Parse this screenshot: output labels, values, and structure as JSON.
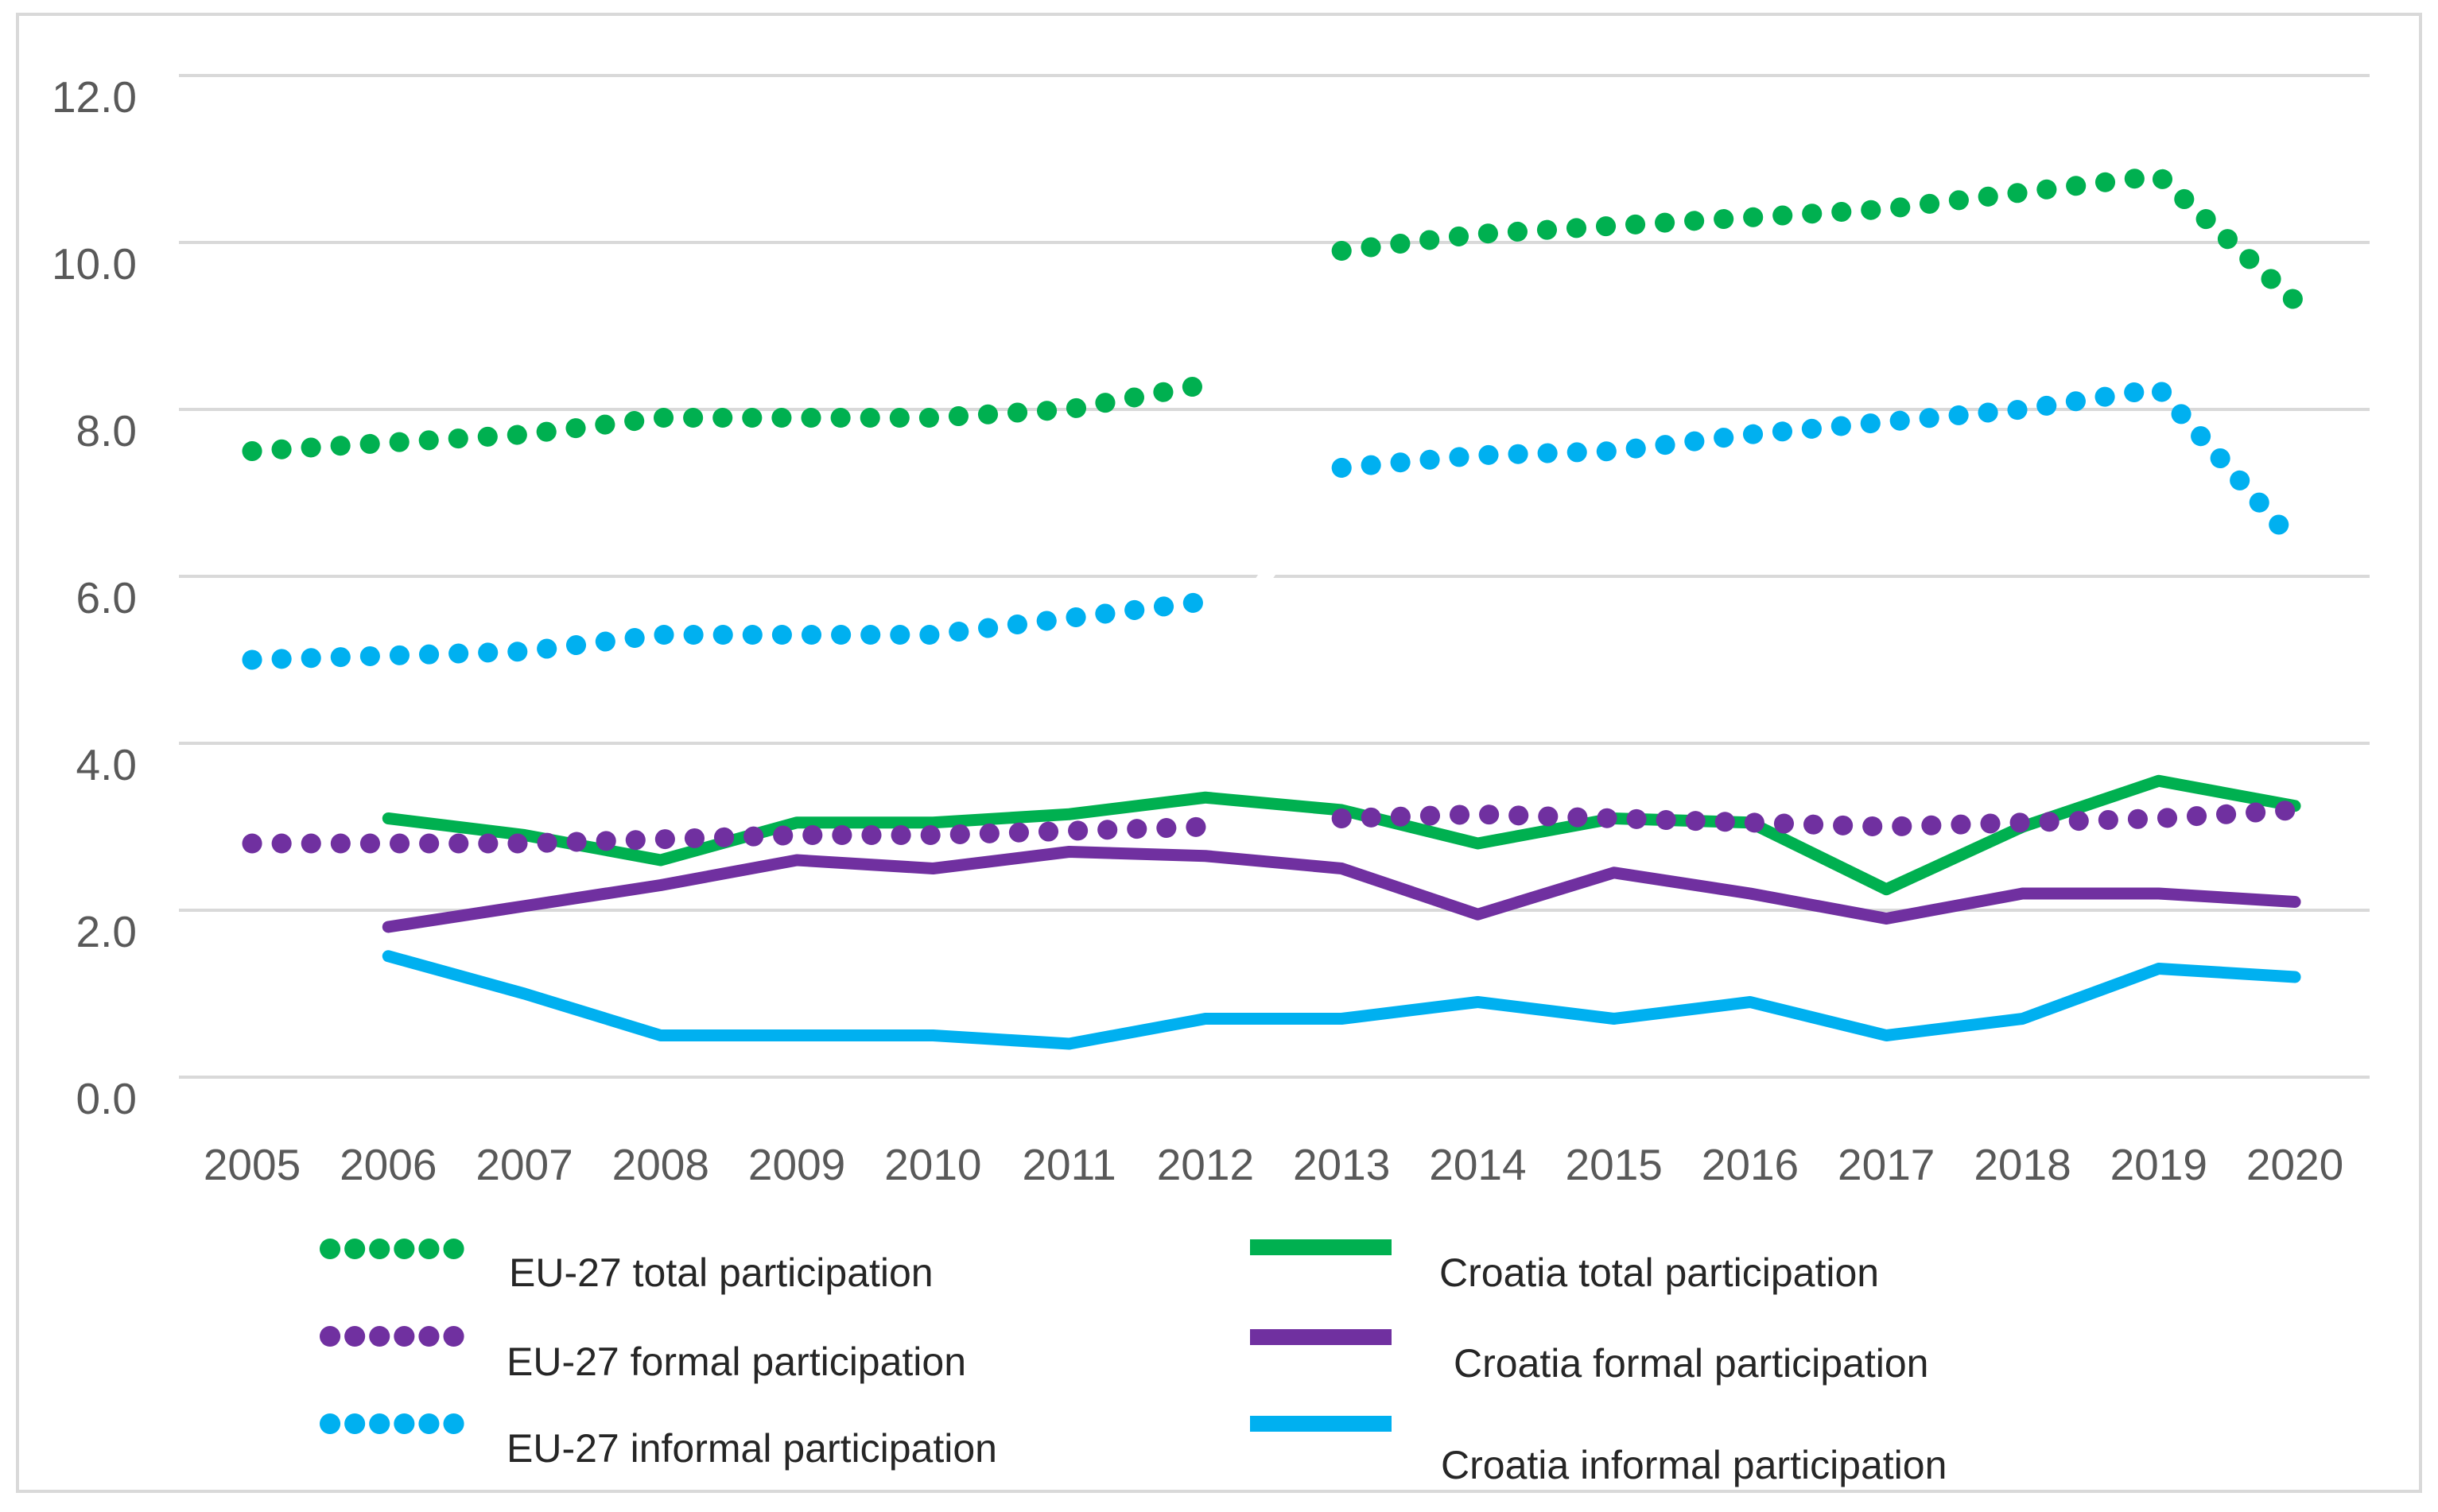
{
  "chart_data": {
    "type": "line",
    "title": "",
    "xlabel": "",
    "ylabel": "",
    "x": [
      2005,
      2006,
      2007,
      2008,
      2009,
      2010,
      2011,
      2012,
      2013,
      2014,
      2015,
      2016,
      2017,
      2018,
      2019,
      2020
    ],
    "xtick_labels": [
      "2005",
      "2006",
      "2007",
      "2008",
      "2009",
      "2010",
      "2011",
      "2012",
      "2013",
      "2014",
      "2015",
      "2016",
      "2017",
      "2018",
      "2019",
      "2020"
    ],
    "ylim": [
      0,
      12
    ],
    "yticks": [
      12,
      10,
      8,
      6,
      4,
      2,
      0
    ],
    "ytick_labels": [
      "12.0",
      "10.0",
      "8.0",
      "6.0",
      "4.0",
      "2.0",
      "0.0"
    ],
    "grid": true,
    "gridline_color": "#D9D9D9",
    "axis_text_color": "#595959",
    "legend_position": "bottom",
    "series_break_between_years": [
      2012,
      2013
    ],
    "series": [
      {
        "name": "EU-27 total participation",
        "style": "dotted",
        "color": "#00B050",
        "break_after_index": 7,
        "values": [
          7.5,
          7.6,
          7.7,
          7.9,
          7.9,
          7.9,
          8.0,
          8.3,
          9.9,
          10.1,
          10.2,
          10.3,
          10.4,
          10.6,
          10.8,
          9.3
        ]
      },
      {
        "name": "EU-27 formal participation",
        "style": "dotted",
        "color": "#7030A0",
        "break_after_index": 7,
        "values": [
          2.8,
          2.8,
          2.8,
          2.85,
          2.9,
          2.9,
          2.95,
          3.0,
          3.1,
          3.15,
          3.1,
          3.05,
          3.0,
          3.05,
          3.1,
          3.2
        ]
      },
      {
        "name": "EU-27 informal participation",
        "style": "dotted",
        "color": "#00B0F0",
        "break_after_index": 7,
        "values": [
          5.0,
          5.05,
          5.1,
          5.3,
          5.3,
          5.3,
          5.5,
          5.7,
          7.3,
          7.45,
          7.5,
          7.7,
          7.85,
          8.0,
          8.25,
          6.4
        ]
      },
      {
        "name": "Croatia total participation",
        "style": "solid",
        "color": "#00B050",
        "break_after_index": null,
        "values": [
          null,
          3.1,
          2.9,
          2.6,
          3.05,
          3.05,
          3.15,
          3.35,
          3.2,
          2.8,
          3.1,
          3.05,
          2.25,
          3.0,
          3.55,
          3.25
        ]
      },
      {
        "name": "Croatia formal participation",
        "style": "solid",
        "color": "#7030A0",
        "break_after_index": null,
        "values": [
          null,
          1.8,
          2.05,
          2.3,
          2.6,
          2.5,
          2.7,
          2.65,
          2.5,
          1.95,
          2.45,
          2.2,
          1.9,
          2.2,
          2.2,
          2.1
        ]
      },
      {
        "name": "Croatia informal participation",
        "style": "solid",
        "color": "#00B0F0",
        "break_after_index": null,
        "values": [
          null,
          1.45,
          1.0,
          0.5,
          0.5,
          0.5,
          0.4,
          0.7,
          0.7,
          0.9,
          0.7,
          0.9,
          0.5,
          0.7,
          1.3,
          1.2
        ]
      }
    ]
  },
  "legend": {
    "left_column": [
      {
        "label": "EU-27 total participation",
        "series_index": 0
      },
      {
        "label": "EU-27 formal participation",
        "series_index": 1
      },
      {
        "label": "EU-27 informal participation",
        "series_index": 2
      }
    ],
    "right_column": [
      {
        "label": "Croatia total participation",
        "series_index": 3
      },
      {
        "label": "Croatia formal participation",
        "series_index": 4
      },
      {
        "label": "Croatia informal participation",
        "series_index": 5
      }
    ]
  },
  "frame": {
    "border_color": "#D9D9D9",
    "background_color": "#FFFFFF"
  }
}
